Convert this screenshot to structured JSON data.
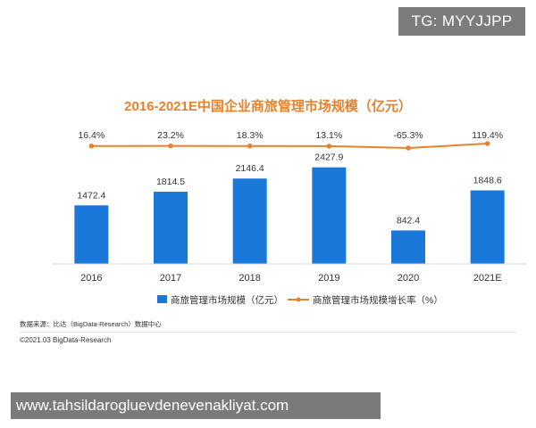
{
  "watermark": {
    "tg_label": "TG: MYYJJPP"
  },
  "banner": {
    "site": "www.tahsildarogluevdenevenakliyat.com"
  },
  "chart_data": {
    "type": "bar",
    "title": "2016-2021E中国企业商旅管理市场规模（亿元）",
    "categories": [
      "2016",
      "2017",
      "2018",
      "2019",
      "2020",
      "2021E"
    ],
    "series": [
      {
        "name": "商旅管理市场规模（亿元）",
        "type": "bar",
        "values": [
          1472.4,
          1814.5,
          2146.4,
          2427.9,
          842.4,
          1848.6
        ],
        "labels": [
          "1472.4",
          "1814.5",
          "2146.4",
          "2427.9",
          "842.4",
          "1848.6"
        ],
        "color": "#1a78d8"
      },
      {
        "name": "商旅管理市场规模增长率（%）",
        "type": "line",
        "values": [
          16.4,
          23.2,
          18.3,
          13.1,
          -65.3,
          119.4
        ],
        "labels": [
          "16.4%",
          "23.2%",
          "18.3%",
          "13.1%",
          "-65.3%",
          "119.4%"
        ],
        "color": "#e8812b"
      }
    ],
    "ylim": [
      0,
      2600
    ],
    "grid": false,
    "legend": "bottom"
  },
  "footer": {
    "source": "数据来源：比达（BigData-Research）数据中心",
    "copyright": "©2021.03 BigData-Research"
  }
}
